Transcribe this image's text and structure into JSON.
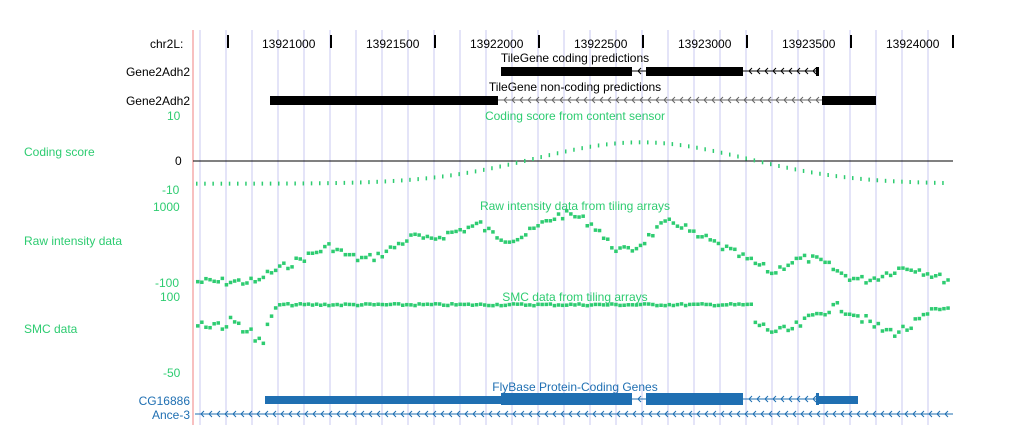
{
  "position": {
    "chrom_label": "chr2L:",
    "ticks": [
      "13921000",
      "13921500",
      "13922000",
      "13922500",
      "13923000",
      "13923500",
      "13924000"
    ]
  },
  "tracks": {
    "tilegene_coding": {
      "title": "TileGene coding predictions",
      "item_label": "Gene2Adh2"
    },
    "tilegene_noncoding": {
      "title": "TileGene non-coding predictions",
      "item_label": "Gene2Adh2"
    },
    "coding_score": {
      "title": "Coding score from content sensor",
      "side_label": "Coding score",
      "y_top": "10",
      "y_mid": "0",
      "y_bottom": "-10"
    },
    "raw_intensity": {
      "title": "Raw intensity data from tiling arrays",
      "side_label": "Raw intensity data",
      "y_top": "1000",
      "y_bottom": "-100"
    },
    "smc": {
      "title": "SMC data from tiling arrays",
      "side_label": "SMC data",
      "y_top": "100",
      "y_bottom": "-50"
    },
    "flybase": {
      "title": "FlyBase Protein-Coding Genes",
      "gene1": "CG16886",
      "gene2": "Ance-3"
    }
  },
  "colors": {
    "green": "#2ecc71",
    "blue": "#1f6fb2",
    "black": "#000000",
    "guide": "#c8c8f0",
    "left_border": "#f08080"
  }
}
